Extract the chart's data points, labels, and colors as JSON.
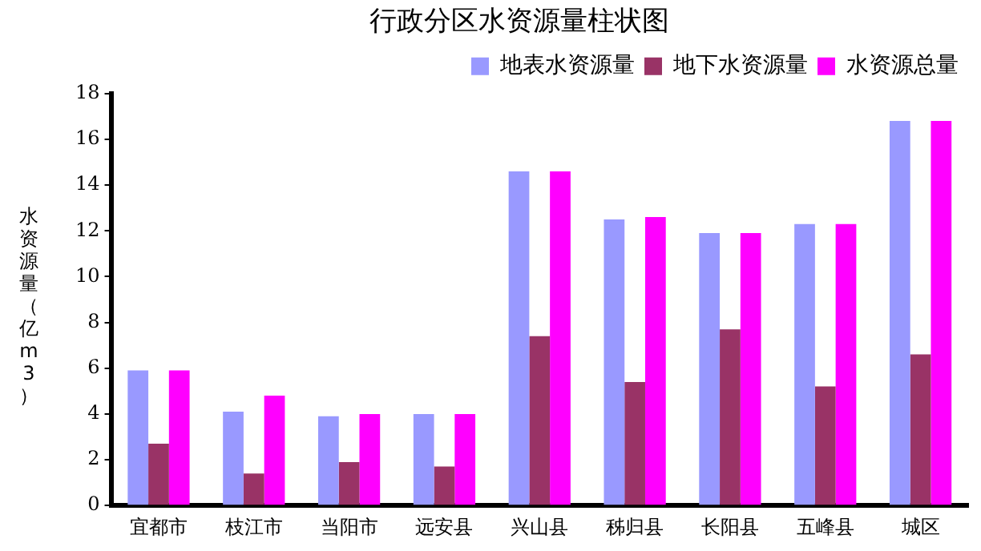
{
  "chart_data": {
    "type": "bar",
    "title": "行政分区水资源量柱状图",
    "ylabel": "水资源量（亿m3）",
    "categories": [
      "宜都市",
      "枝江市",
      "当阳市",
      "远安县",
      "兴山县",
      "秭归县",
      "长阳县",
      "五峰县",
      "城区"
    ],
    "series": [
      {
        "name": "地表水资源量",
        "color": "#9999ff",
        "values": [
          5.9,
          4.1,
          3.9,
          4.0,
          14.6,
          12.5,
          11.9,
          12.3,
          16.8
        ]
      },
      {
        "name": "地下水资源量",
        "color": "#993366",
        "values": [
          2.7,
          1.4,
          1.9,
          1.7,
          7.4,
          5.4,
          7.7,
          5.2,
          6.6
        ]
      },
      {
        "name": "水资源总量",
        "color": "#ff00ff",
        "values": [
          5.9,
          4.8,
          4.0,
          4.0,
          14.6,
          12.6,
          11.9,
          12.3,
          16.8
        ]
      }
    ],
    "ylim": [
      0,
      18
    ],
    "yticks": [
      0,
      2,
      4,
      6,
      8,
      10,
      12,
      14,
      16,
      18
    ],
    "grid": false,
    "legend": "top"
  }
}
